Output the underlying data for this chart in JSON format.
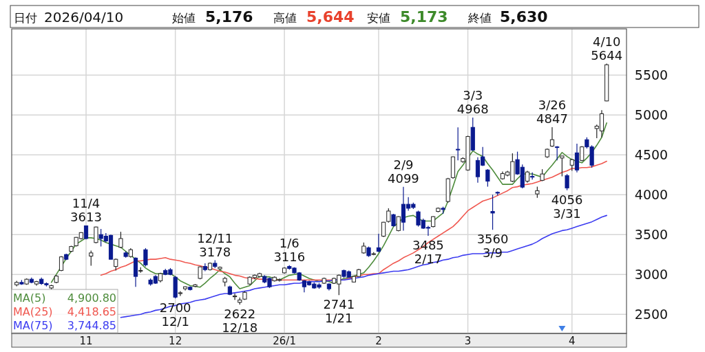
{
  "chart_data": {
    "type": "candlestick",
    "categories": [
      null,
      null,
      null,
      null,
      null,
      null,
      null,
      null,
      null,
      null,
      null,
      null,
      null,
      null,
      "11",
      null,
      null,
      null,
      null,
      null,
      null,
      null,
      null,
      null,
      null,
      null,
      null,
      null,
      null,
      null,
      null,
      null,
      "12",
      null,
      null,
      null,
      null,
      null,
      null,
      null,
      null,
      null,
      null,
      null,
      null,
      null,
      null,
      null,
      null,
      null,
      null,
      null,
      null,
      null,
      "26/1",
      null,
      null,
      null,
      null,
      null,
      null,
      null,
      null,
      null,
      null,
      null,
      null,
      null,
      null,
      null,
      null,
      null,
      null,
      "2",
      null,
      null,
      null,
      null,
      null,
      null,
      null,
      null,
      null,
      null,
      null,
      null,
      null,
      null,
      null,
      null,
      null,
      "3",
      null,
      null,
      null,
      null,
      null,
      null,
      null,
      null,
      null,
      null,
      null,
      null,
      null,
      null,
      null,
      null,
      null,
      null,
      null,
      null,
      "4",
      null,
      null,
      null,
      null,
      null,
      null,
      null
    ],
    "ohlc": [
      [
        2870,
        2920,
        2850,
        2900
      ],
      [
        2900,
        2930,
        2870,
        2880
      ],
      [
        2880,
        2950,
        2870,
        2940
      ],
      [
        2940,
        2960,
        2890,
        2900
      ],
      [
        2880,
        2920,
        2860,
        2910
      ],
      [
        2940,
        2960,
        2870,
        2885
      ],
      [
        2885,
        2900,
        2850,
        2870
      ],
      [
        2830,
        2870,
        2810,
        2860
      ],
      [
        2900,
        2990,
        2890,
        2980
      ],
      [
        3050,
        3230,
        3040,
        3220
      ],
      [
        3250,
        3260,
        3180,
        3190
      ],
      [
        3290,
        3360,
        3280,
        3350
      ],
      [
        3360,
        3470,
        3350,
        3465
      ],
      [
        3450,
        3530,
        3440,
        3525
      ],
      [
        3610,
        3613,
        3440,
        3450
      ],
      [
        3230,
        3300,
        3110,
        3270
      ],
      [
        3400,
        3600,
        3390,
        3595
      ],
      [
        3500,
        3570,
        3350,
        3450
      ],
      [
        3480,
        3520,
        3400,
        3420
      ],
      [
        3490,
        3500,
        3190,
        3190
      ],
      [
        3100,
        3200,
        3050,
        3190
      ],
      [
        3340,
        3535,
        3330,
        3450
      ],
      [
        3270,
        3290,
        3210,
        3225
      ],
      [
        3225,
        3330,
        3210,
        3310
      ],
      [
        3205,
        3215,
        2845,
        2975
      ],
      [
        3050,
        3090,
        3020,
        3050
      ],
      [
        3310,
        3330,
        3100,
        3120
      ],
      [
        2930,
        2950,
        2860,
        2880
      ],
      [
        2975,
        2990,
        2880,
        2890
      ],
      [
        2920,
        3020,
        2900,
        3010
      ],
      [
        3050,
        3070,
        2990,
        3000
      ],
      [
        3060,
        3080,
        2990,
        3000
      ],
      [
        2965,
        2980,
        2700,
        2715
      ],
      [
        2760,
        2790,
        2730,
        2770
      ],
      [
        2820,
        2850,
        2800,
        2845
      ],
      [
        2840,
        2850,
        2800,
        2810
      ],
      [
        2850,
        2880,
        2840,
        2870
      ],
      [
        2950,
        3100,
        2940,
        3095
      ],
      [
        3100,
        3140,
        3040,
        3060
      ],
      [
        3060,
        3150,
        3050,
        3140
      ],
      [
        3140,
        3178,
        3080,
        3100
      ],
      [
        3070,
        3100,
        3060,
        3090
      ],
      [
        2905,
        2970,
        2850,
        2950
      ],
      [
        2845,
        2860,
        2740,
        2750
      ],
      [
        2720,
        2760,
        2680,
        2730
      ],
      [
        2650,
        2710,
        2622,
        2680
      ],
      [
        2690,
        2790,
        2680,
        2775
      ],
      [
        2880,
        2975,
        2870,
        2965
      ],
      [
        2960,
        3000,
        2940,
        2990
      ],
      [
        2975,
        3020,
        2960,
        3010
      ],
      [
        2975,
        2990,
        2890,
        2905
      ],
      [
        2950,
        2960,
        2830,
        2845
      ],
      [
        2920,
        2975,
        2910,
        2965
      ],
      [
        2925,
        2950,
        2910,
        2935
      ],
      [
        3020,
        3090,
        3010,
        3080
      ],
      [
        3100,
        3116,
        3060,
        3075
      ],
      [
        3080,
        3090,
        3010,
        3020
      ],
      [
        3020,
        3030,
        2920,
        2930
      ],
      [
        2920,
        2930,
        2775,
        2845
      ],
      [
        2910,
        2920,
        2860,
        2870
      ],
      [
        2880,
        2900,
        2820,
        2830
      ],
      [
        2870,
        2890,
        2820,
        2840
      ],
      [
        2890,
        2960,
        2880,
        2950
      ],
      [
        2880,
        2890,
        2800,
        2820
      ],
      [
        2890,
        2960,
        2880,
        2950
      ],
      [
        2880,
        3000,
        2741,
        2990
      ],
      [
        3050,
        3060,
        2960,
        2975
      ],
      [
        3035,
        3050,
        2960,
        2965
      ],
      [
        2905,
        2980,
        2900,
        2975
      ],
      [
        2975,
        3070,
        2970,
        3060
      ],
      [
        3270,
        3400,
        3260,
        3355
      ],
      [
        3335,
        3350,
        3220,
        3235
      ],
      [
        3250,
        3280,
        3240,
        3260
      ],
      [
        3335,
        3510,
        3280,
        3290
      ],
      [
        3480,
        3660,
        3470,
        3655
      ],
      [
        3665,
        3830,
        3650,
        3795
      ],
      [
        3750,
        3760,
        3600,
        3610
      ],
      [
        3550,
        3730,
        3540,
        3725
      ],
      [
        3880,
        4099,
        3550,
        3655
      ],
      [
        3880,
        3970,
        3800,
        3830
      ],
      [
        3880,
        3900,
        3820,
        3840
      ],
      [
        3785,
        3800,
        3600,
        3620
      ],
      [
        3680,
        3700,
        3570,
        3580
      ],
      [
        3590,
        3610,
        3485,
        3580
      ],
      [
        3600,
        3730,
        3590,
        3725
      ],
      [
        3790,
        3840,
        3780,
        3830
      ],
      [
        3830,
        3850,
        3760,
        3815
      ],
      [
        3915,
        4210,
        3900,
        4200
      ],
      [
        4215,
        4480,
        4200,
        4475
      ],
      [
        4570,
        4845,
        4430,
        4565
      ],
      [
        4415,
        4470,
        4400,
        4455
      ],
      [
        4310,
        4740,
        4300,
        4730
      ],
      [
        4845,
        4968,
        4550,
        4560
      ],
      [
        4430,
        4470,
        4150,
        4225
      ],
      [
        4475,
        4600,
        4360,
        4370
      ],
      [
        4310,
        4320,
        4100,
        4170
      ],
      [
        3790,
        4000,
        3560,
        3770
      ],
      [
        4030,
        4040,
        3990,
        4020
      ],
      [
        4200,
        4290,
        4190,
        4265
      ],
      [
        4245,
        4300,
        4230,
        4285
      ],
      [
        4170,
        4520,
        4160,
        4415
      ],
      [
        4440,
        4540,
        4250,
        4260
      ],
      [
        4345,
        4380,
        4080,
        4095
      ],
      [
        4170,
        4300,
        4150,
        4285
      ],
      [
        4230,
        4280,
        4190,
        4220
      ],
      [
        4010,
        4100,
        3960,
        4050
      ],
      [
        4180,
        4320,
        4170,
        4260
      ],
      [
        4475,
        4580,
        4460,
        4570
      ],
      [
        4610,
        4847,
        4600,
        4690
      ],
      [
        4600,
        4610,
        4430,
        4595
      ],
      [
        4460,
        4485,
        4230,
        4485
      ],
      [
        4240,
        4260,
        4056,
        4085
      ],
      [
        4370,
        4450,
        4300,
        4440
      ],
      [
        4525,
        4640,
        4280,
        4310
      ],
      [
        4430,
        4610,
        4420,
        4600
      ],
      [
        4690,
        4720,
        4580,
        4600
      ],
      [
        4600,
        4620,
        4340,
        4370
      ],
      [
        4830,
        4880,
        4710,
        4860
      ],
      [
        4800,
        5060,
        4720,
        5015
      ],
      [
        5176,
        5644,
        5173,
        5630
      ]
    ],
    "ylim": [
      2260,
      6080
    ],
    "yticks": [
      2500,
      3000,
      3500,
      4000,
      4500,
      5000,
      5500
    ],
    "grid": true,
    "legend": "bottom left",
    "series": [
      {
        "name": "MA(5)",
        "type": "line",
        "color": "#4e8c3c",
        "values": [
          null,
          null,
          null,
          null,
          null,
          null,
          null,
          2900,
          3000,
          3100,
          3200,
          3290,
          3380,
          3420,
          3460,
          3460,
          3450,
          3430,
          3400,
          3380,
          3360,
          3340,
          3290,
          3240,
          3190,
          3140,
          3080,
          3040,
          3010,
          3010,
          3010,
          3010,
          2970,
          2920,
          2890,
          2860,
          2850,
          2840,
          2890,
          2950,
          3000,
          3060,
          3010,
          2970,
          2890,
          2820,
          2840,
          2860,
          2920,
          2980,
          2970,
          2970,
          2950,
          2930,
          2960,
          2990,
          3000,
          3010,
          2980,
          2950,
          2930,
          2910,
          2920,
          2910,
          2890,
          2920,
          2950,
          2960,
          2980,
          3000,
          3020,
          3090,
          3170,
          3260,
          3360,
          3480,
          3600,
          3650,
          3710,
          3730,
          3740,
          3700,
          3670,
          3670,
          3670,
          3720,
          3770,
          3920,
          4100,
          4290,
          4370,
          4460,
          4550,
          4510,
          4480,
          4390,
          4310,
          4220,
          4130,
          4130,
          4130,
          4200,
          4260,
          4260,
          4260,
          4240,
          4220,
          4300,
          4370,
          4450,
          4530,
          4480,
          4440,
          4420,
          4400,
          4460,
          4530,
          4620,
          4720,
          4900
        ]
      },
      {
        "name": "MA(25)",
        "type": "line",
        "color": "#f0574f",
        "values": [
          null,
          null,
          null,
          null,
          null,
          null,
          null,
          null,
          null,
          null,
          null,
          null,
          null,
          null,
          null,
          null,
          null,
          2990,
          3010,
          3040,
          3060,
          3090,
          3110,
          3140,
          3170,
          3170,
          3180,
          3190,
          3190,
          3200,
          3210,
          3190,
          3180,
          3170,
          3150,
          3140,
          3120,
          3110,
          3090,
          3080,
          3060,
          3040,
          3030,
          3010,
          2990,
          2980,
          2960,
          2950,
          2950,
          2940,
          2940,
          2930,
          2930,
          2930,
          2930,
          2930,
          2930,
          2930,
          2930,
          2930,
          2930,
          2930,
          2930,
          2930,
          2930,
          2930,
          2930,
          2950,
          2970,
          2980,
          3000,
          3000,
          3010,
          3010,
          3060,
          3100,
          3140,
          3170,
          3210,
          3240,
          3270,
          3310,
          3350,
          3400,
          3440,
          3480,
          3520,
          3560,
          3600,
          3660,
          3730,
          3800,
          3840,
          3880,
          3920,
          3940,
          3960,
          3990,
          4020,
          4050,
          4090,
          4100,
          4120,
          4130,
          4140,
          4160,
          4180,
          4200,
          4220,
          4250,
          4280,
          4300,
          4330,
          4330,
          4340,
          4340,
          4350,
          4370,
          4390,
          4420
        ]
      },
      {
        "name": "MA(75)",
        "type": "line",
        "color": "#3b3bf0",
        "values": [
          null,
          null,
          null,
          null,
          null,
          null,
          null,
          null,
          null,
          null,
          null,
          null,
          null,
          null,
          null,
          null,
          null,
          null,
          null,
          null,
          null,
          2460,
          2470,
          2480,
          2490,
          2500,
          2520,
          2530,
          2550,
          2560,
          2580,
          2600,
          2610,
          2630,
          2640,
          2650,
          2670,
          2680,
          2690,
          2710,
          2730,
          2750,
          2760,
          2760,
          2770,
          2780,
          2790,
          2800,
          2820,
          2830,
          2840,
          2850,
          2860,
          2870,
          2870,
          2880,
          2890,
          2890,
          2900,
          2910,
          2910,
          2910,
          2920,
          2920,
          2930,
          2930,
          2930,
          2940,
          2950,
          2960,
          2970,
          2990,
          3000,
          3010,
          3020,
          3030,
          3040,
          3040,
          3050,
          3060,
          3080,
          3100,
          3120,
          3130,
          3150,
          3160,
          3180,
          3190,
          3210,
          3220,
          3240,
          3250,
          3260,
          3260,
          3260,
          3270,
          3270,
          3270,
          3280,
          3280,
          3300,
          3320,
          3340,
          3360,
          3380,
          3410,
          3450,
          3480,
          3510,
          3530,
          3550,
          3560,
          3580,
          3600,
          3620,
          3640,
          3660,
          3690,
          3720,
          3740
        ]
      }
    ],
    "annotations": [
      "日付",
      "2026/04/10",
      "始値",
      "5,176",
      "高値",
      "5,644",
      "安値",
      "5,173",
      "終値",
      "5,630",
      "4,900.80",
      "4,418.65",
      "3,744.85",
      {
        "text": "11/4 3613",
        "y": 3613
      },
      {
        "text": "2700 12/1",
        "y": 2700
      },
      {
        "text": "12/11 3178",
        "y": 3178
      },
      {
        "text": "2622 12/18",
        "y": 2622
      },
      {
        "text": "1/6 3116",
        "y": 3116
      },
      {
        "text": "2741 1/21",
        "y": 2741
      },
      {
        "text": "2/9 4099",
        "y": 4099
      },
      {
        "text": "3485 2/17",
        "y": 3485
      },
      {
        "text": "3/3 4968",
        "y": 4968
      },
      {
        "text": "3560 3/9",
        "y": 3560
      },
      {
        "text": "3/26 4847",
        "y": 4847
      },
      {
        "text": "4056 3/31",
        "y": 4056
      },
      {
        "text": "4/10 5644",
        "y": 5644
      }
    ]
  }
}
